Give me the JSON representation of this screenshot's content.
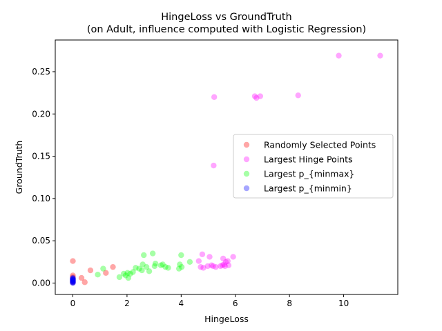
{
  "figure": {
    "title_line1": "HingeLoss vs GroundTruth",
    "title_line2": "(on Adult, influence computed with Logistic Regression)"
  },
  "chart_data": {
    "type": "scatter",
    "title": "HingeLoss vs GroundTruth\n(on Adult, influence computed with Logistic Regression)",
    "xlabel": "HingeLoss",
    "ylabel": "GroundTruth",
    "xlim": [
      -0.65,
      12.0
    ],
    "ylim": [
      -0.0135,
      0.2875
    ],
    "xticks": [
      0,
      2,
      4,
      6,
      8,
      10
    ],
    "yticks": [
      0.0,
      0.05,
      0.1,
      0.15,
      0.2,
      0.25
    ],
    "xtick_labels": [
      "0",
      "2",
      "4",
      "6",
      "8",
      "10"
    ],
    "ytick_labels": [
      "0.00",
      "0.05",
      "0.10",
      "0.15",
      "0.20",
      "0.25"
    ],
    "grid": false,
    "legend_position": "center-right",
    "marker_alpha": 0.35,
    "series": [
      {
        "name": "Randomly Selected Points",
        "color": "#ff0000",
        "points": [
          [
            0.0,
            0.026
          ],
          [
            0.0,
            0.009
          ],
          [
            0.0,
            0.007
          ],
          [
            0.0,
            0.004
          ],
          [
            0.0,
            0.002
          ],
          [
            0.0,
            0.001
          ],
          [
            0.32,
            0.006
          ],
          [
            0.44,
            0.001
          ],
          [
            0.65,
            0.015
          ],
          [
            1.22,
            0.012
          ],
          [
            1.48,
            0.019
          ]
        ]
      },
      {
        "name": "Largest Hinge Points",
        "color": "#ff00ff",
        "points": [
          [
            9.82,
            0.269
          ],
          [
            11.35,
            0.269
          ],
          [
            5.22,
            0.22
          ],
          [
            6.72,
            0.221
          ],
          [
            6.78,
            0.219
          ],
          [
            6.92,
            0.221
          ],
          [
            8.32,
            0.222
          ],
          [
            5.2,
            0.139
          ],
          [
            4.65,
            0.026
          ],
          [
            4.72,
            0.019
          ],
          [
            4.78,
            0.034
          ],
          [
            4.82,
            0.018
          ],
          [
            4.98,
            0.02
          ],
          [
            5.05,
            0.031
          ],
          [
            5.12,
            0.021
          ],
          [
            5.18,
            0.02
          ],
          [
            5.28,
            0.019
          ],
          [
            5.45,
            0.02
          ],
          [
            5.52,
            0.021
          ],
          [
            5.55,
            0.029
          ],
          [
            5.58,
            0.022
          ],
          [
            5.62,
            0.02
          ],
          [
            5.65,
            0.025
          ],
          [
            5.72,
            0.026
          ],
          [
            5.75,
            0.021
          ],
          [
            5.92,
            0.031
          ]
        ]
      },
      {
        "name": "Largest p_{minmax}",
        "color": "#00ff00",
        "points": [
          [
            0.92,
            0.01
          ],
          [
            1.12,
            0.017
          ],
          [
            1.72,
            0.007
          ],
          [
            1.88,
            0.011
          ],
          [
            1.95,
            0.009
          ],
          [
            2.02,
            0.012
          ],
          [
            2.05,
            0.006
          ],
          [
            2.12,
            0.011
          ],
          [
            2.22,
            0.013
          ],
          [
            2.32,
            0.018
          ],
          [
            2.45,
            0.017
          ],
          [
            2.55,
            0.015
          ],
          [
            2.58,
            0.022
          ],
          [
            2.62,
            0.033
          ],
          [
            2.72,
            0.019
          ],
          [
            2.82,
            0.014
          ],
          [
            2.95,
            0.035
          ],
          [
            3.02,
            0.02
          ],
          [
            3.05,
            0.023
          ],
          [
            3.25,
            0.021
          ],
          [
            3.32,
            0.022
          ],
          [
            3.42,
            0.019
          ],
          [
            3.52,
            0.018
          ],
          [
            3.92,
            0.017
          ],
          [
            3.95,
            0.022
          ],
          [
            4.0,
            0.033
          ],
          [
            4.02,
            0.019
          ],
          [
            4.32,
            0.025
          ]
        ]
      },
      {
        "name": "Largest p_{minmin}",
        "color": "#0000ff",
        "points": [
          [
            0.0,
            0.006
          ],
          [
            0.0,
            0.0055
          ],
          [
            0.0,
            0.005
          ],
          [
            0.0,
            0.0045
          ],
          [
            0.0,
            0.004
          ],
          [
            0.0,
            0.0035
          ],
          [
            0.0,
            0.003
          ],
          [
            0.0,
            0.0025
          ],
          [
            0.0,
            0.002
          ],
          [
            0.0,
            0.0015
          ],
          [
            0.0,
            0.001
          ],
          [
            0.0,
            0.0005
          ],
          [
            0.0,
            0.0
          ]
        ]
      }
    ]
  }
}
